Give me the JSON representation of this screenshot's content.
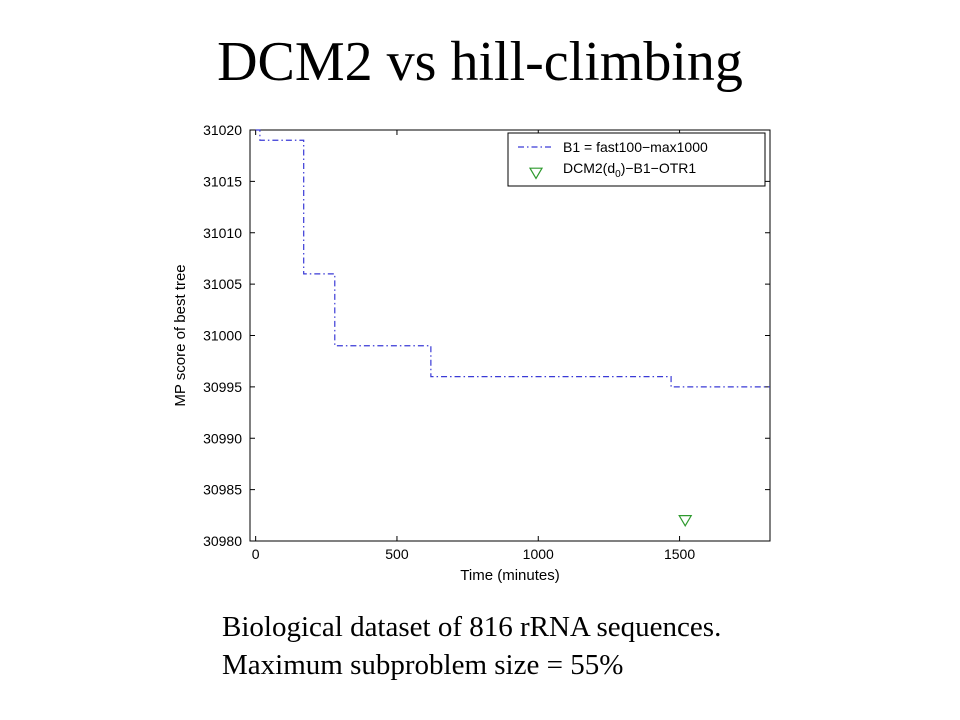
{
  "slide": {
    "title": "DCM2 vs hill-climbing",
    "caption_line1": "Biological dataset of 816 rRNA sequences.",
    "caption_line2": "Maximum subproblem size = 55%"
  },
  "chart_data": {
    "type": "line",
    "xlabel": "Time (minutes)",
    "ylabel": "MP score of best tree",
    "xlim": [
      -20,
      1820
    ],
    "ylim": [
      30980,
      31020
    ],
    "xticks": [
      0,
      500,
      1000,
      1500
    ],
    "yticks": [
      30980,
      30985,
      30990,
      30995,
      31000,
      31005,
      31010,
      31015,
      31020
    ],
    "grid": false,
    "legend_position": "top-right",
    "colors": {
      "line": "#3a3ad6",
      "marker": "#2e9a2e"
    },
    "series": [
      {
        "label_main": "B1 = fast100−max1000",
        "style": "dash-dot line",
        "x": [
          0,
          15,
          15,
          170,
          170,
          280,
          280,
          620,
          620,
          1470,
          1470,
          1820
        ],
        "y": [
          31020,
          31020,
          31019,
          31019,
          31006,
          31006,
          30999,
          30999,
          30996,
          30996,
          30995,
          30995
        ]
      },
      {
        "label_main": "DCM2(d",
        "label_sub": "0",
        "label_rest": ")−B1−OTR1",
        "style": "triangle-down marker",
        "x": [
          1520
        ],
        "y": [
          30982
        ]
      }
    ]
  }
}
